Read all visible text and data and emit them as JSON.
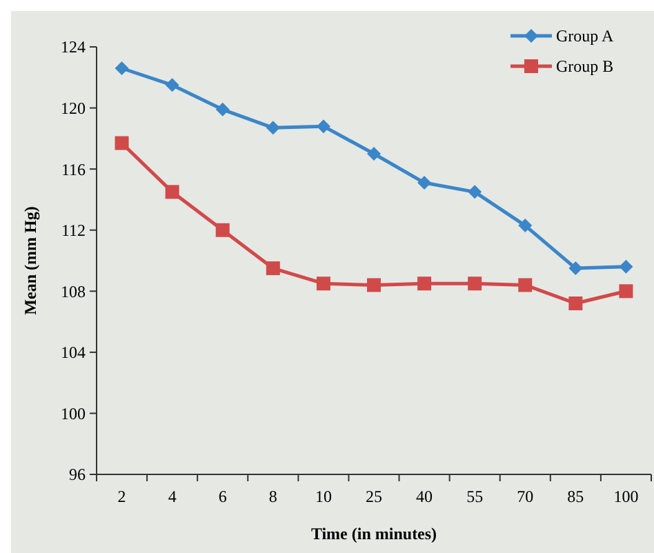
{
  "chart_data": {
    "type": "line",
    "xlabel": "Time (in minutes)",
    "ylabel": "Mean (mm Hg)",
    "categories": [
      "2",
      "4",
      "6",
      "8",
      "10",
      "25",
      "40",
      "55",
      "70",
      "85",
      "100"
    ],
    "ylim": [
      96,
      124
    ],
    "yticks": [
      96,
      100,
      104,
      108,
      112,
      116,
      120,
      124
    ],
    "grid": false,
    "legend": "top right",
    "series": [
      {
        "name": "Group A",
        "color": "#3b86c8",
        "marker": "diamond",
        "values": [
          122.6,
          121.5,
          119.9,
          118.7,
          118.8,
          117.0,
          115.1,
          114.5,
          112.3,
          109.5,
          109.6
        ]
      },
      {
        "name": "Group B",
        "color": "#d04a4a",
        "marker": "square",
        "values": [
          117.7,
          114.5,
          112.0,
          109.5,
          108.5,
          108.4,
          108.5,
          108.5,
          108.4,
          107.2,
          108.0
        ]
      }
    ]
  }
}
